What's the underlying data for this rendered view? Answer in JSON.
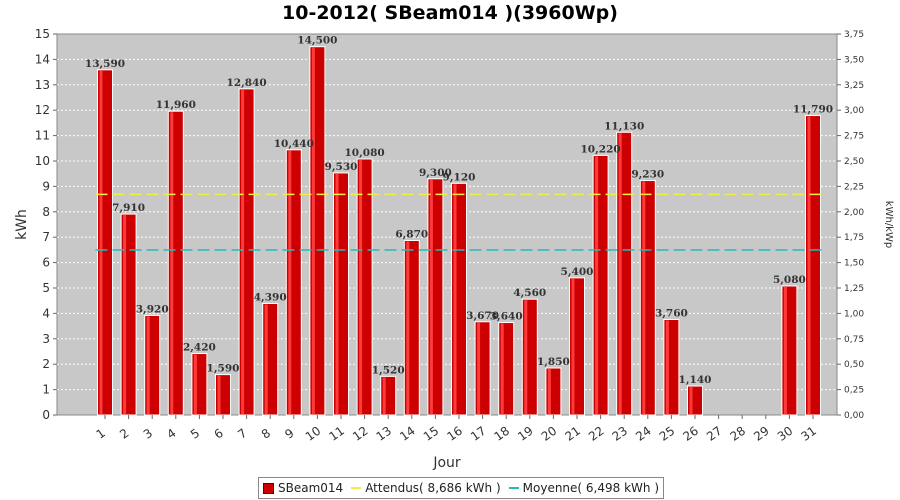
{
  "chart_data": {
    "type": "bar",
    "title": "10-2012( SBeam014 )(3960Wp)",
    "xlabel": "Jour",
    "ylabel": "kWh",
    "ylabel_right": "kWh/kWp",
    "ylim": [
      0,
      15
    ],
    "ylim_right": [
      0,
      3.75
    ],
    "grid": true,
    "legend_position": "bottom",
    "categories": [
      "1",
      "2",
      "3",
      "4",
      "5",
      "6",
      "7",
      "8",
      "9",
      "10",
      "11",
      "12",
      "13",
      "14",
      "15",
      "16",
      "17",
      "18",
      "19",
      "20",
      "21",
      "22",
      "23",
      "24",
      "25",
      "26",
      "27",
      "28",
      "29",
      "30",
      "31"
    ],
    "series": [
      {
        "name": "SBeam014",
        "color": "#cc0000",
        "values": [
          13.59,
          7.91,
          3.92,
          11.96,
          2.42,
          1.59,
          12.84,
          4.39,
          10.44,
          14.5,
          9.53,
          10.08,
          1.52,
          6.87,
          9.3,
          9.12,
          3.67,
          3.64,
          4.56,
          1.85,
          5.4,
          10.22,
          11.13,
          9.23,
          3.76,
          1.14,
          0,
          0,
          0,
          5.08,
          11.79
        ],
        "labels": [
          "13,590",
          "7,910",
          "3,920",
          "11,960",
          "2,420",
          "1,590",
          "12,840",
          "4,390",
          "10,440",
          "14,500",
          "9,530",
          "10,080",
          "1,520",
          "6,870",
          "9,300",
          "9,120",
          "3,670",
          "3,640",
          "4,560",
          "1,850",
          "5,400",
          "10,220",
          "11,130",
          "9,230",
          "3,760",
          "1,140",
          "",
          "",
          "",
          "5,080",
          "11,790"
        ]
      }
    ],
    "lines": [
      {
        "name": "Attendus( 8,686 kWh )",
        "value": 8.686,
        "color": "#eeee44"
      },
      {
        "name": "Moyenne( 6,498 kWh )",
        "value": 6.498,
        "color": "#22bbbb"
      }
    ],
    "yticks": [
      "0",
      "1",
      "2",
      "3",
      "4",
      "5",
      "6",
      "7",
      "8",
      "9",
      "10",
      "11",
      "12",
      "13",
      "14",
      "15"
    ],
    "yticks_right": [
      "0,00",
      "0,25",
      "0,50",
      "0,75",
      "1,00",
      "1,25",
      "1,50",
      "1,75",
      "2,00",
      "2,25",
      "2,50",
      "2,75",
      "3,00",
      "3,25",
      "3,50",
      "3,75"
    ]
  }
}
